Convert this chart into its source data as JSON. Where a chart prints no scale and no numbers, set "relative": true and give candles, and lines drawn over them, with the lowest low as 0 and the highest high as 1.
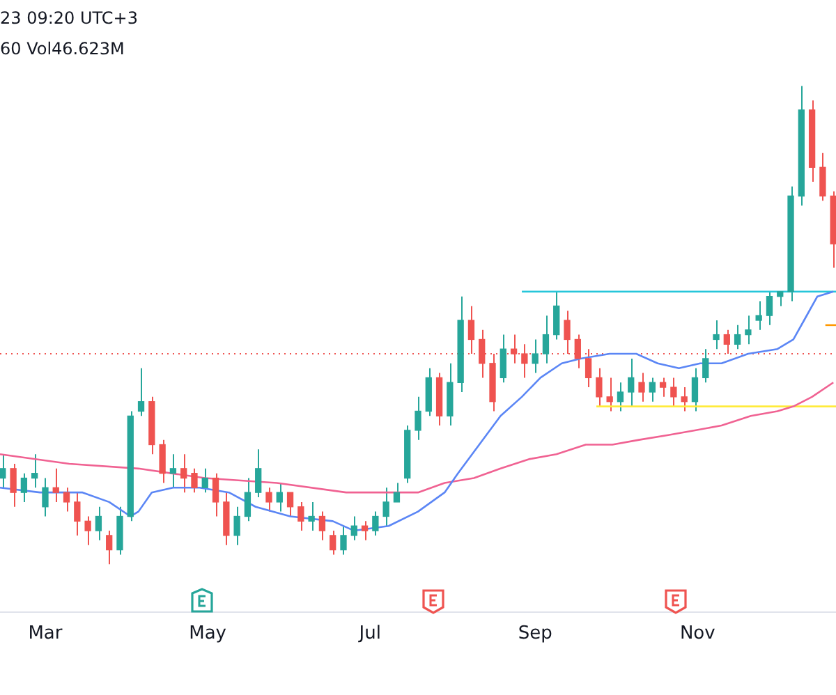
{
  "chart_data": {
    "type": "candlestick",
    "relative": true,
    "annotations": [
      "23 09:20 UTC+3",
      "60 Vol46.623M"
    ],
    "xlim": [
      "--02-12",
      "--12-23"
    ],
    "xticks": [
      {
        "value": "--03-01",
        "label": "Mar"
      },
      {
        "value": "--05-01",
        "label": "May"
      },
      {
        "value": "--07-01",
        "label": "Jul"
      },
      {
        "value": "--09-01",
        "label": "Sep"
      },
      {
        "value": "--11-01",
        "label": "Nov"
      }
    ],
    "x": [
      "--02-13",
      "--02-17",
      "--02-21",
      "--02-25",
      "--03-01",
      "--03-05",
      "--03-09",
      "--03-13",
      "--03-17",
      "--03-21",
      "--03-25",
      "--03-29",
      "--04-02",
      "--04-06",
      "--04-10",
      "--04-14",
      "--04-18",
      "--04-22",
      "--04-26",
      "--04-30",
      "--05-04",
      "--05-08",
      "--05-12",
      "--05-16",
      "--05-20",
      "--05-24",
      "--05-28",
      "--06-01",
      "--06-05",
      "--06-09",
      "--06-13",
      "--06-17",
      "--06-21",
      "--06-25",
      "--06-29",
      "--07-03",
      "--07-07",
      "--07-11",
      "--07-15",
      "--07-19",
      "--07-23",
      "--07-27",
      "--07-31",
      "--08-04",
      "--08-08",
      "--08-12",
      "--08-16",
      "--08-20",
      "--08-24",
      "--08-28",
      "--09-01",
      "--09-05",
      "--09-09",
      "--09-13",
      "--09-17",
      "--09-21",
      "--09-25",
      "--09-29",
      "--10-03",
      "--10-07",
      "--10-11",
      "--10-15",
      "--10-19",
      "--10-23",
      "--10-27",
      "--10-31",
      "--11-04",
      "--11-08",
      "--11-12",
      "--11-16",
      "--11-20",
      "--11-24",
      "--11-28",
      "--12-02",
      "--12-06",
      "--12-10",
      "--12-14",
      "--12-18",
      "--12-22"
    ],
    "ohlc": [
      [
        0.18,
        0.23,
        0.16,
        0.2
      ],
      [
        0.2,
        0.21,
        0.12,
        0.15
      ],
      [
        0.15,
        0.19,
        0.13,
        0.18
      ],
      [
        0.18,
        0.23,
        0.16,
        0.19
      ],
      [
        0.12,
        0.18,
        0.1,
        0.16
      ],
      [
        0.16,
        0.2,
        0.13,
        0.15
      ],
      [
        0.15,
        0.16,
        0.11,
        0.13
      ],
      [
        0.13,
        0.15,
        0.06,
        0.09
      ],
      [
        0.09,
        0.1,
        0.04,
        0.07
      ],
      [
        0.07,
        0.12,
        0.05,
        0.1
      ],
      [
        0.06,
        0.07,
        0,
        0.03
      ],
      [
        0.03,
        0.12,
        0.02,
        0.1
      ],
      [
        0.1,
        0.32,
        0.09,
        0.31
      ],
      [
        0.32,
        0.41,
        0.31,
        0.34
      ],
      [
        0.34,
        0.35,
        0.23,
        0.25
      ],
      [
        0.25,
        0.26,
        0.17,
        0.19
      ],
      [
        0.19,
        0.23,
        0.16,
        0.2
      ],
      [
        0.2,
        0.23,
        0.15,
        0.18
      ],
      [
        0.19,
        0.2,
        0.15,
        0.16
      ],
      [
        0.16,
        0.2,
        0.15,
        0.18
      ],
      [
        0.18,
        0.19,
        0.1,
        0.13
      ],
      [
        0.13,
        0.15,
        0.04,
        0.06
      ],
      [
        0.06,
        0.12,
        0.04,
        0.1
      ],
      [
        0.1,
        0.18,
        0.09,
        0.15
      ],
      [
        0.15,
        0.24,
        0.14,
        0.2
      ],
      [
        0.15,
        0.16,
        0.11,
        0.13
      ],
      [
        0.13,
        0.17,
        0.11,
        0.15
      ],
      [
        0.15,
        0.15,
        0.1,
        0.12
      ],
      [
        0.12,
        0.13,
        0.07,
        0.09
      ],
      [
        0.09,
        0.13,
        0.07,
        0.1
      ],
      [
        0.1,
        0.11,
        0.05,
        0.07
      ],
      [
        0.06,
        0.07,
        0.02,
        0.03
      ],
      [
        0.03,
        0.08,
        0.02,
        0.06
      ],
      [
        0.06,
        0.1,
        0.05,
        0.08
      ],
      [
        0.08,
        0.09,
        0.05,
        0.07
      ],
      [
        0.07,
        0.11,
        0.06,
        0.1
      ],
      [
        0.1,
        0.16,
        0.08,
        0.13
      ],
      [
        0.13,
        0.17,
        0.13,
        0.15
      ],
      [
        0.18,
        0.29,
        0.17,
        0.28
      ],
      [
        0.28,
        0.35,
        0.26,
        0.32
      ],
      [
        0.32,
        0.41,
        0.31,
        0.39
      ],
      [
        0.39,
        0.4,
        0.29,
        0.31
      ],
      [
        0.31,
        0.42,
        0.29,
        0.38
      ],
      [
        0.38,
        0.56,
        0.36,
        0.51
      ],
      [
        0.51,
        0.54,
        0.44,
        0.47
      ],
      [
        0.47,
        0.49,
        0.39,
        0.42
      ],
      [
        0.42,
        0.44,
        0.32,
        0.34
      ],
      [
        0.39,
        0.48,
        0.38,
        0.45
      ],
      [
        0.45,
        0.48,
        0.42,
        0.44
      ],
      [
        0.44,
        0.46,
        0.39,
        0.42
      ],
      [
        0.42,
        0.47,
        0.4,
        0.44
      ],
      [
        0.44,
        0.52,
        0.42,
        0.48
      ],
      [
        0.48,
        0.57,
        0.47,
        0.54
      ],
      [
        0.51,
        0.53,
        0.44,
        0.47
      ],
      [
        0.47,
        0.48,
        0.41,
        0.43
      ],
      [
        0.43,
        0.45,
        0.37,
        0.39
      ],
      [
        0.39,
        0.41,
        0.33,
        0.35
      ],
      [
        0.35,
        0.39,
        0.32,
        0.34
      ],
      [
        0.34,
        0.38,
        0.32,
        0.36
      ],
      [
        0.36,
        0.43,
        0.33,
        0.39
      ],
      [
        0.38,
        0.4,
        0.34,
        0.36
      ],
      [
        0.36,
        0.39,
        0.34,
        0.38
      ],
      [
        0.38,
        0.39,
        0.35,
        0.37
      ],
      [
        0.37,
        0.39,
        0.33,
        0.35
      ],
      [
        0.35,
        0.37,
        0.32,
        0.34
      ],
      [
        0.34,
        0.41,
        0.32,
        0.39
      ],
      [
        0.39,
        0.45,
        0.38,
        0.43
      ],
      [
        0.47,
        0.51,
        0.45,
        0.48
      ],
      [
        0.48,
        0.49,
        0.44,
        0.46
      ],
      [
        0.46,
        0.5,
        0.45,
        0.48
      ],
      [
        0.48,
        0.52,
        0.46,
        0.49
      ],
      [
        0.51,
        0.55,
        0.49,
        0.52
      ],
      [
        0.52,
        0.57,
        0.5,
        0.56
      ],
      [
        0.56,
        0.57,
        0.54,
        0.57
      ],
      [
        0.57,
        0.79,
        0.55,
        0.77
      ],
      [
        0.77,
        1,
        0.75,
        0.95
      ],
      [
        0.95,
        0.97,
        0.8,
        0.83
      ],
      [
        0.83,
        0.86,
        0.76,
        0.77
      ],
      [
        0.77,
        0.78,
        0.62,
        0.67
      ]
    ],
    "series": [
      {
        "type": "line",
        "color": "#5b86f5",
        "x": [
          "--02-12",
          "--02-27",
          "--03-15",
          "--03-25",
          "--04-02",
          "--04-05",
          "--04-10",
          "--04-18",
          "--04-28",
          "--05-09",
          "--05-19",
          "--06-01",
          "--06-17",
          "--06-25",
          "--07-08",
          "--07-19",
          "--07-29",
          "--08-03",
          "--08-11",
          "--08-19",
          "--08-27",
          "--09-03",
          "--09-11",
          "--09-18",
          "--09-29",
          "--10-09",
          "--10-17",
          "--10-25",
          "--11-02",
          "--11-10",
          "--11-20",
          "--12-01",
          "--12-07",
          "--12-11",
          "--12-16",
          "--12-22"
        ],
        "values": [
          0.16,
          0.15,
          0.15,
          0.13,
          0.1,
          0.11,
          0.15,
          0.16,
          0.16,
          0.15,
          0.12,
          0.1,
          0.09,
          0.07,
          0.08,
          0.11,
          0.15,
          0.19,
          0.25,
          0.31,
          0.35,
          0.39,
          0.42,
          0.43,
          0.44,
          0.44,
          0.42,
          0.41,
          0.42,
          0.42,
          0.44,
          0.45,
          0.47,
          0.51,
          0.56,
          0.57
        ]
      },
      {
        "type": "line",
        "color": "#f06292",
        "x": [
          "--02-12",
          "--03-10",
          "--04-05",
          "--04-30",
          "--05-27",
          "--06-22",
          "--07-08",
          "--07-19",
          "--07-29",
          "--08-09",
          "--08-19",
          "--08-30",
          "--09-09",
          "--09-20",
          "--09-30",
          "--10-10",
          "--10-21",
          "--10-31",
          "--11-10",
          "--11-21",
          "--12-01",
          "--12-07",
          "--12-14",
          "--12-22"
        ],
        "values": [
          0.23,
          0.21,
          0.2,
          0.18,
          0.17,
          0.15,
          0.15,
          0.15,
          0.17,
          0.18,
          0.2,
          0.22,
          0.23,
          0.25,
          0.25,
          0.26,
          0.27,
          0.28,
          0.29,
          0.31,
          0.32,
          0.33,
          0.35,
          0.38
        ]
      },
      {
        "type": "line",
        "color": "#26c6da",
        "x": [
          "--08-27",
          "--12-23"
        ],
        "values": [
          0.57,
          0.57
        ]
      },
      {
        "type": "line",
        "color": "#ffeb3b",
        "x": [
          "--09-24",
          "--12-23"
        ],
        "values": [
          0.33,
          0.33
        ]
      },
      {
        "type": "line",
        "color": "#ff9800",
        "x": [
          "--12-19",
          "--12-23"
        ],
        "values": [
          0.5,
          0.5
        ]
      }
    ],
    "ref_lines": [
      {
        "axis": "y",
        "value": 0.44,
        "color": "#ef5350",
        "line_style": "dotted"
      }
    ]
  }
}
